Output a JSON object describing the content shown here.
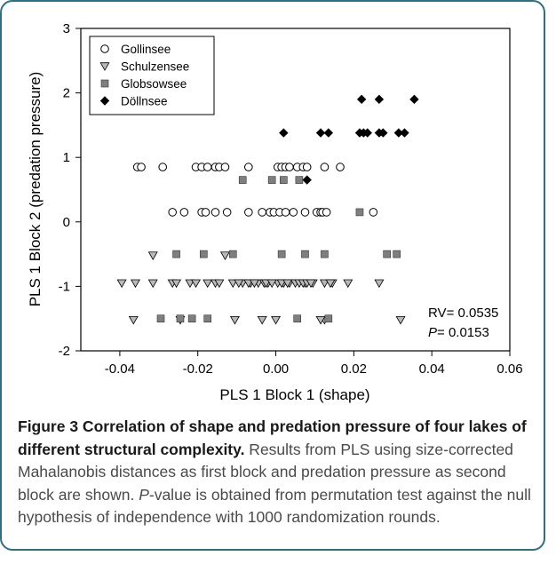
{
  "chart_data": {
    "type": "scatter",
    "xlabel": "PLS 1 Block 1 (shape)",
    "ylabel": "PLS 1 Block 2 (predation pressure)",
    "xlim": [
      -0.05,
      0.06
    ],
    "ylim": [
      -2,
      3
    ],
    "xticks": [
      -0.04,
      -0.02,
      0.0,
      0.02,
      0.04,
      0.06
    ],
    "xtick_labels": [
      "-0.04",
      "-0.02",
      "0.00",
      "0.02",
      "0.04",
      "0.06"
    ],
    "yticks": [
      -2,
      -1,
      0,
      1,
      2,
      3
    ],
    "ytick_labels": [
      "-2",
      "-1",
      "0",
      "1",
      "2",
      "3"
    ],
    "grid": false,
    "legend_position": "top-left",
    "annotation": {
      "rv": "RV= 0.0535",
      "p_label": "P",
      "p_value": "= 0.0153"
    },
    "series": [
      {
        "name": "Gollinsee",
        "marker": "circle-open",
        "x": [
          -0.0355,
          -0.0345,
          -0.029,
          -0.0205,
          -0.019,
          -0.0175,
          -0.0155,
          -0.0145,
          -0.013,
          -0.007,
          0.0005,
          0.0015,
          0.0025,
          0.0035,
          0.0055,
          0.007,
          0.008,
          0.0125,
          0.0165,
          -0.0265,
          -0.0235,
          -0.019,
          -0.018,
          -0.0155,
          -0.0125,
          -0.007,
          -0.0035,
          -0.0015,
          -0.0005,
          0.001,
          0.0025,
          0.0045,
          0.0075,
          0.0105,
          0.0115,
          0.012,
          0.013,
          0.025
        ],
        "y": [
          0.85,
          0.85,
          0.85,
          0.85,
          0.85,
          0.85,
          0.85,
          0.85,
          0.85,
          0.85,
          0.85,
          0.85,
          0.85,
          0.85,
          0.85,
          0.85,
          0.85,
          0.85,
          0.85,
          0.15,
          0.15,
          0.15,
          0.15,
          0.15,
          0.15,
          0.15,
          0.15,
          0.15,
          0.15,
          0.15,
          0.15,
          0.15,
          0.15,
          0.15,
          0.15,
          0.15,
          0.15,
          0.15
        ]
      },
      {
        "name": "Schulzensee",
        "marker": "triangle-down-open",
        "x": [
          -0.0395,
          -0.0315,
          -0.0265,
          -0.022,
          -0.0175,
          -0.0155,
          -0.011,
          -0.0085,
          -0.0065,
          -0.0045,
          -0.002,
          0.0005,
          0.002,
          0.0035,
          0.0075,
          0.0095,
          0.0125,
          0.0145,
          0.0185,
          0.0265,
          -0.0315,
          -0.013,
          -0.0365,
          -0.0245,
          -0.0105,
          0.0,
          0.0125,
          0.032,
          -0.036,
          -0.0255,
          -0.0205,
          -0.0145,
          -0.0095,
          -0.007,
          -0.0055,
          -0.003,
          -0.0025,
          -0.001,
          0.0015,
          0.003,
          0.005,
          0.006,
          0.007,
          0.008,
          0.009,
          0.014,
          -0.0035,
          0.0115
        ],
        "y": [
          -0.95,
          -0.95,
          -0.95,
          -0.95,
          -0.95,
          -0.95,
          -0.95,
          -0.95,
          -0.95,
          -0.95,
          -0.95,
          -0.95,
          -0.95,
          -0.95,
          -0.95,
          -0.95,
          -0.95,
          -0.95,
          -0.95,
          -0.95,
          -0.52,
          -0.52,
          -1.52,
          -1.52,
          -1.52,
          -1.52,
          -1.52,
          -1.52,
          -0.95,
          -0.95,
          -0.95,
          -0.95,
          -0.95,
          -0.95,
          -0.95,
          -0.95,
          -0.95,
          -0.95,
          -0.95,
          -0.95,
          -0.95,
          -0.95,
          -0.95,
          -0.95,
          -0.95,
          -0.95,
          -1.52,
          -1.52
        ]
      },
      {
        "name": "Globsowsee",
        "marker": "square-filled",
        "x": [
          -0.0085,
          -0.001,
          0.002,
          0.006,
          0.0215,
          -0.0255,
          -0.0185,
          -0.011,
          0.0015,
          0.0075,
          0.0125,
          0.0285,
          0.031,
          -0.0295,
          -0.0245,
          -0.0215,
          -0.0175,
          0.0055,
          0.0135
        ],
        "y": [
          0.65,
          0.65,
          0.65,
          0.65,
          0.15,
          -0.5,
          -0.5,
          -0.5,
          -0.5,
          -0.5,
          -0.5,
          -0.5,
          -0.5,
          -1.5,
          -1.5,
          -1.5,
          -1.5,
          -1.5,
          -1.5
        ]
      },
      {
        "name": "Döllnsee",
        "marker": "diamond-filled",
        "x": [
          0.022,
          0.0265,
          0.0355,
          0.002,
          0.0115,
          0.0135,
          0.0215,
          0.0225,
          0.0235,
          0.0265,
          0.0275,
          0.0315,
          0.033,
          0.008
        ],
        "y": [
          1.9,
          1.9,
          1.9,
          1.38,
          1.38,
          1.38,
          1.38,
          1.38,
          1.38,
          1.38,
          1.38,
          1.38,
          1.38,
          0.65
        ]
      }
    ]
  },
  "caption": {
    "lead": "Figure 3 Correlation of shape and predation pressure of four lakes of different structural complexity.",
    "body": " Results from PLS using size-corrected Mahalanobis distances as first block and predation pressure as second block are shown. ",
    "p_italic": "P",
    "tail": "-value is obtained from permutation test against the null hypothesis of independence with 1000 randomization rounds."
  }
}
